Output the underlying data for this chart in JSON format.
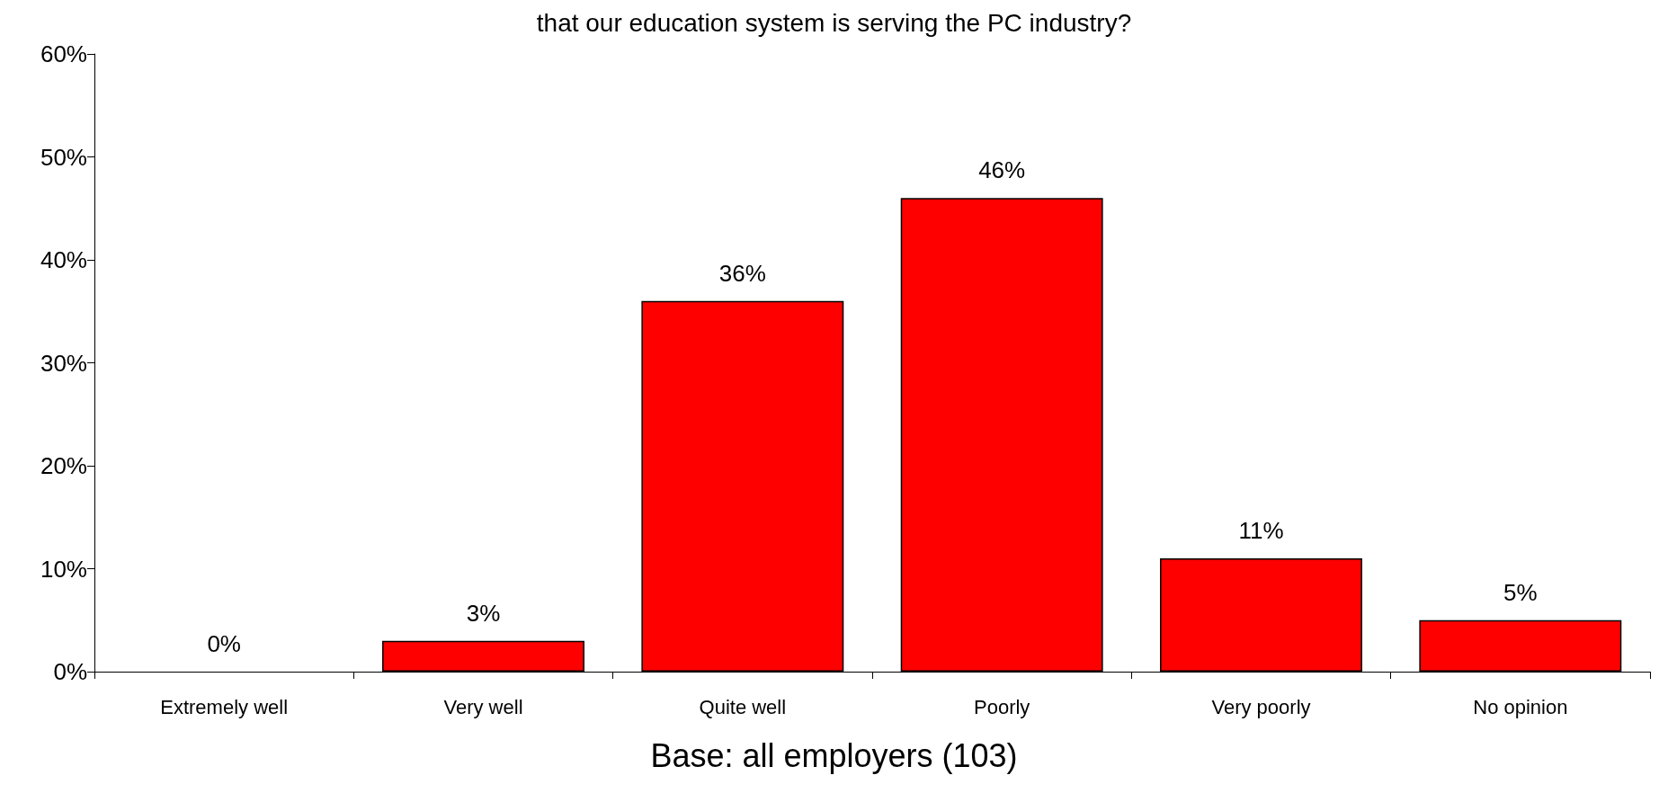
{
  "chart_data": {
    "type": "bar",
    "title": "that our education system is serving the PC industry?",
    "categories": [
      "Extremely well",
      "Very well",
      "Quite well",
      "Poorly",
      "Very poorly",
      "No opinion"
    ],
    "values": [
      0,
      3,
      36,
      46,
      11,
      5
    ],
    "value_labels": [
      "0%",
      "3%",
      "36%",
      "46%",
      "11%",
      "5%"
    ],
    "color": "#ff0000",
    "ylim": [
      0,
      60
    ],
    "yticks": [
      {
        "value": 0,
        "label": "0%"
      },
      {
        "value": 10,
        "label": "10%"
      },
      {
        "value": 20,
        "label": "20%"
      },
      {
        "value": 30,
        "label": "30%"
      },
      {
        "value": 40,
        "label": "40%"
      },
      {
        "value": 50,
        "label": "50%"
      },
      {
        "value": 60,
        "label": "60%"
      }
    ],
    "grid": false,
    "annotations": [
      "Base: all employers (103)"
    ]
  }
}
